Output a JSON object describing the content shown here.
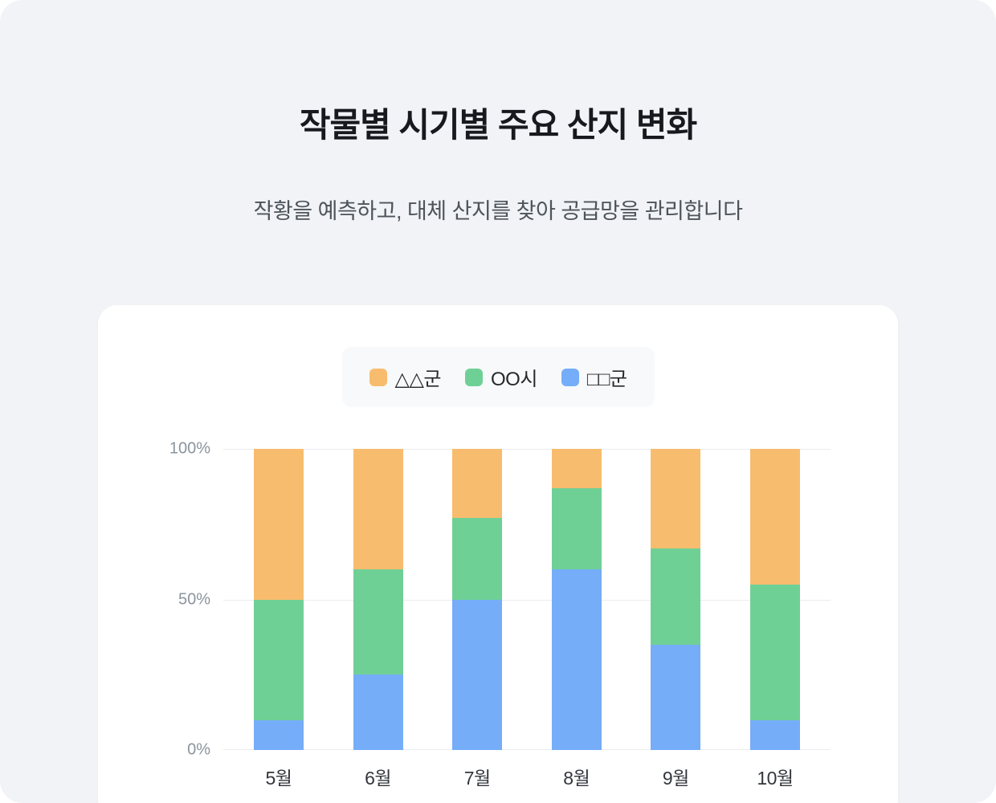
{
  "page": {
    "title": "작물별 시기별 주요 산지 변화",
    "subtitle": "작황을 예측하고, 대체 산지를 찾아 공급망을 관리합니다"
  },
  "colors": {
    "page_background": "#F1F3F6",
    "card_background": "#FFFFFF",
    "orange": "#F8BC6E",
    "green": "#6FD096",
    "blue": "#75ADF8"
  },
  "legend": [
    {
      "label": "△△군",
      "color": "#F8BC6E"
    },
    {
      "label": "OO시",
      "color": "#6FD096"
    },
    {
      "label": "□□군",
      "color": "#75ADF8"
    }
  ],
  "chart_data": {
    "type": "bar",
    "stacked": true,
    "unit": "%",
    "title": "작물별 시기별 주요 산지 변화",
    "categories": [
      "5월",
      "6월",
      "7월",
      "8월",
      "9월",
      "10월"
    ],
    "series": [
      {
        "name": "□□군",
        "color": "#75ADF8",
        "values": [
          10,
          25,
          50,
          60,
          35,
          10
        ]
      },
      {
        "name": "OO시",
        "color": "#6FD096",
        "values": [
          40,
          35,
          27,
          27,
          32,
          45
        ]
      },
      {
        "name": "△△군",
        "color": "#F8BC6E",
        "values": [
          50,
          40,
          23,
          13,
          33,
          45
        ]
      }
    ],
    "ylim": [
      0,
      100
    ],
    "y_ticks": [
      "100%",
      "50%",
      "0%"
    ],
    "grid": true,
    "legend_position": "top"
  }
}
